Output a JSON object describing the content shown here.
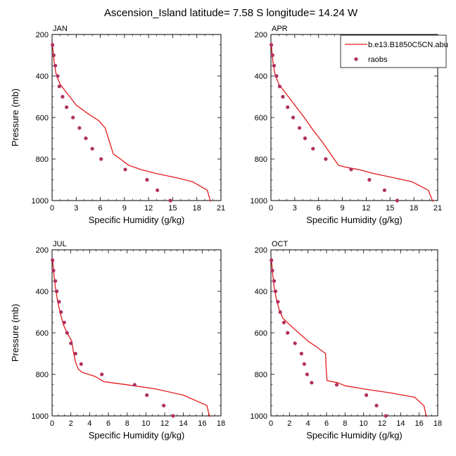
{
  "title": "Ascension_Island  latitude= 7.58 S longitude= 14.24 W",
  "colors": {
    "model": "#e41a1c",
    "obs": "#b03060",
    "frame": "#000000"
  },
  "legend": {
    "placement": "top-right of APR panel",
    "model_label": "b.e13.B1850C5CN.abu",
    "obs_label": "raobs"
  },
  "chart_data": [
    {
      "type": "line",
      "panel": "JAN",
      "xlabel": "Specific Humidity (g/kg)",
      "ylabel": "Pressure (mb)",
      "xlim": [
        0,
        21
      ],
      "ylim": [
        200,
        1000
      ],
      "y_inverted": true,
      "xticks": [
        0,
        3,
        6,
        9,
        12,
        15,
        18,
        21
      ],
      "yticks": [
        200,
        400,
        600,
        800,
        1000
      ],
      "series": [
        {
          "name": "b.e13.B1850C5CN.abu",
          "style": "line",
          "x": [
            0.05,
            0.1,
            0.25,
            0.5,
            1.0,
            2.0,
            3.0,
            4.4,
            5.8,
            6.6,
            7.0,
            7.6,
            8.5,
            9.5,
            11.0,
            13.0,
            15.5,
            17.5,
            19.3,
            19.7
          ],
          "y": [
            240,
            270,
            330,
            390,
            440,
            490,
            540,
            580,
            615,
            650,
            700,
            775,
            800,
            830,
            850,
            870,
            890,
            910,
            950,
            1005
          ]
        },
        {
          "name": "raobs",
          "style": "markers",
          "x": [
            0.05,
            0.2,
            0.4,
            0.7,
            0.9,
            1.3,
            1.8,
            2.6,
            3.4,
            4.2,
            5.0,
            6.1,
            9.1,
            11.8,
            13.1,
            14.7
          ],
          "y": [
            250,
            300,
            350,
            400,
            450,
            500,
            550,
            600,
            650,
            700,
            750,
            800,
            850,
            900,
            950,
            1000
          ]
        }
      ]
    },
    {
      "type": "line",
      "panel": "APR",
      "xlabel": "Specific Humidity (g/kg)",
      "ylabel": "",
      "xlim": [
        0,
        21
      ],
      "ylim": [
        200,
        1000
      ],
      "y_inverted": true,
      "xticks": [
        0,
        3,
        6,
        9,
        12,
        15,
        18,
        21
      ],
      "yticks": [
        200,
        400,
        600,
        800,
        1000
      ],
      "series": [
        {
          "name": "b.e13.B1850C5CN.abu",
          "style": "line",
          "x": [
            0.05,
            0.1,
            0.25,
            0.5,
            1.0,
            2.0,
            3.0,
            4.2,
            5.3,
            6.5,
            7.6,
            8.5,
            9.5,
            11.0,
            13.0,
            15.5,
            17.8,
            19.8,
            20.4
          ],
          "y": [
            240,
            270,
            330,
            390,
            440,
            490,
            540,
            600,
            660,
            720,
            780,
            830,
            840,
            850,
            870,
            890,
            910,
            950,
            1005
          ]
        },
        {
          "name": "raobs",
          "style": "markers",
          "x": [
            0.05,
            0.2,
            0.4,
            0.7,
            1.1,
            1.5,
            2.1,
            2.8,
            3.6,
            4.3,
            5.3,
            6.9,
            10.1,
            12.4,
            14.3,
            15.9
          ],
          "y": [
            250,
            300,
            350,
            400,
            450,
            500,
            550,
            600,
            650,
            700,
            750,
            800,
            850,
            900,
            950,
            1000
          ]
        }
      ]
    },
    {
      "type": "line",
      "panel": "JUL",
      "xlabel": "Specific Humidity (g/kg)",
      "ylabel": "Pressure (mb)",
      "xlim": [
        0,
        18
      ],
      "ylim": [
        200,
        1000
      ],
      "y_inverted": true,
      "xticks": [
        0,
        2,
        4,
        6,
        8,
        10,
        12,
        14,
        16,
        18
      ],
      "yticks": [
        200,
        400,
        600,
        800,
        1000
      ],
      "series": [
        {
          "name": "b.e13.B1850C5CN.abu",
          "style": "line",
          "x": [
            0.05,
            0.1,
            0.2,
            0.35,
            0.6,
            0.9,
            1.2,
            1.6,
            2.1,
            2.3,
            2.5,
            2.8,
            3.2,
            4.6,
            5.5,
            8.0,
            11.0,
            14.0,
            16.5,
            16.8
          ],
          "y": [
            240,
            270,
            320,
            380,
            450,
            510,
            560,
            600,
            640,
            700,
            740,
            775,
            790,
            810,
            835,
            850,
            870,
            900,
            950,
            1005
          ]
        },
        {
          "name": "raobs",
          "style": "markers",
          "x": [
            0.05,
            0.15,
            0.35,
            0.5,
            0.75,
            0.95,
            1.3,
            1.6,
            2.0,
            2.5,
            3.1,
            5.3,
            8.8,
            10.1,
            11.9,
            12.9
          ],
          "y": [
            250,
            300,
            350,
            400,
            450,
            500,
            550,
            600,
            650,
            700,
            750,
            800,
            850,
            900,
            950,
            1000
          ]
        }
      ]
    },
    {
      "type": "line",
      "panel": "OCT",
      "xlabel": "Specific Humidity (g/kg)",
      "ylabel": "",
      "xlim": [
        0,
        18
      ],
      "ylim": [
        200,
        1000
      ],
      "y_inverted": true,
      "xticks": [
        0,
        2,
        4,
        6,
        8,
        10,
        12,
        14,
        16,
        18
      ],
      "yticks": [
        200,
        400,
        600,
        800,
        1000
      ],
      "series": [
        {
          "name": "b.e13.B1850C5CN.abu",
          "style": "line",
          "x": [
            0.05,
            0.1,
            0.2,
            0.35,
            0.6,
            0.9,
            1.3,
            2.0,
            3.0,
            4.0,
            5.0,
            5.9,
            5.95,
            6.05,
            7.2,
            8.0,
            10.0,
            13.0,
            15.5,
            16.5,
            16.8
          ],
          "y": [
            240,
            270,
            320,
            380,
            440,
            490,
            530,
            560,
            600,
            640,
            670,
            700,
            760,
            830,
            840,
            855,
            870,
            890,
            910,
            950,
            1005
          ]
        },
        {
          "name": "raobs",
          "style": "markers",
          "x": [
            0.05,
            0.15,
            0.35,
            0.5,
            0.75,
            1.0,
            1.4,
            1.8,
            2.6,
            3.3,
            3.6,
            3.9,
            4.4,
            7.1,
            10.3,
            11.4,
            12.4
          ],
          "y": [
            250,
            300,
            350,
            400,
            450,
            500,
            550,
            600,
            650,
            700,
            750,
            800,
            840,
            850,
            900,
            950,
            1000
          ]
        }
      ]
    }
  ]
}
